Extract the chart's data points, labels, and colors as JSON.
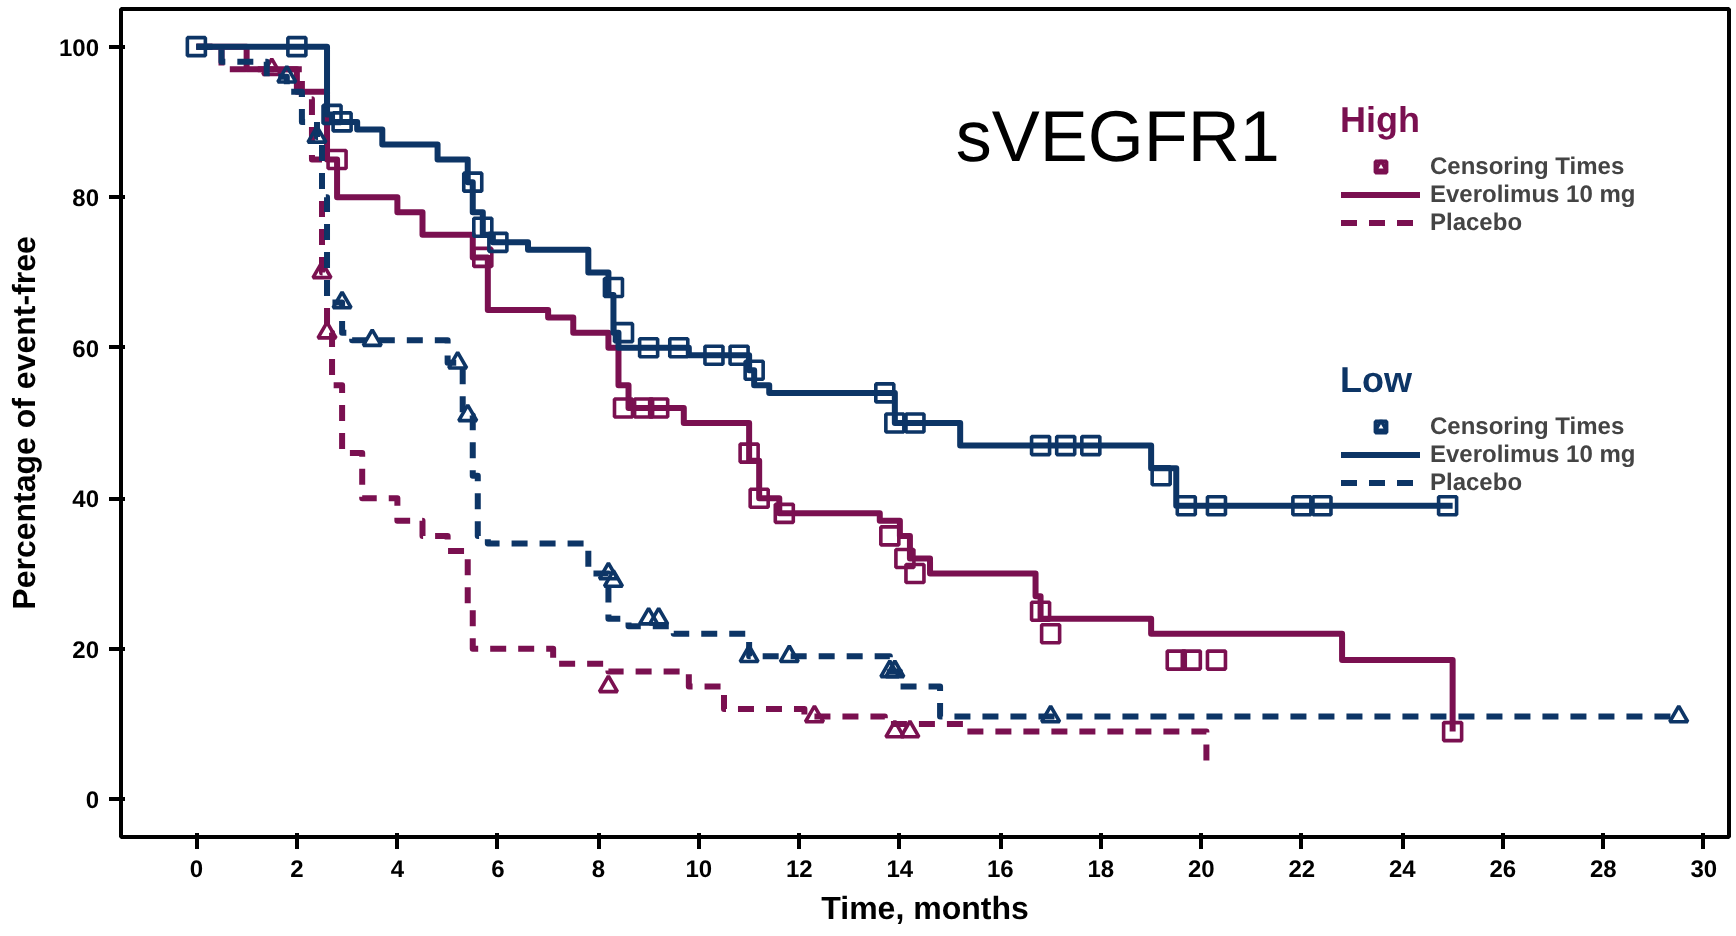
{
  "chart_data": {
    "type": "step",
    "title": "sVEGFR1",
    "xlabel": "Time, months",
    "ylabel": "Percentage of event-free",
    "annotations": [
      "High",
      "Low"
    ],
    "xlim": [
      -1.5,
      30.5
    ],
    "ylim": [
      -5,
      105
    ],
    "xticks": [
      0,
      2,
      4,
      6,
      8,
      10,
      12,
      14,
      16,
      18,
      20,
      22,
      24,
      26,
      28,
      30
    ],
    "yticks": [
      0,
      20,
      40,
      60,
      80,
      100
    ],
    "grid": false,
    "legend": "top right",
    "series": [
      {
        "name": "Everolimus 10 mg",
        "color": "#7a1050",
        "line_style": "solid",
        "x": [
          0,
          1,
          2,
          2.6,
          2.8,
          4,
          4.5,
          5.5,
          5.8,
          7,
          7.5,
          8.2,
          8.4,
          8.6,
          9.7,
          10.8,
          11,
          11.2,
          11.6,
          13.6,
          14,
          14.2,
          14.6,
          16.7,
          16.8,
          19,
          22.8,
          25
        ],
        "values": [
          100,
          97,
          94,
          85,
          80,
          78,
          75,
          72,
          65,
          64,
          62,
          60,
          55,
          52,
          50,
          50,
          45,
          40,
          38,
          37,
          35,
          32,
          30,
          27,
          24,
          22,
          18.5,
          9
        ]
      },
      {
        "name": "Placebo",
        "color": "#7a1050",
        "line_style": "dashed",
        "x": [
          0,
          0.5,
          1.5,
          2.1,
          2.3,
          2.5,
          2.6,
          2.7,
          2.9,
          3.3,
          4,
          4.5,
          5,
          5.4,
          5.5,
          7.1,
          8.2,
          9.8,
          10.5,
          12.1,
          13.7,
          15.3,
          20.1
        ],
        "values": [
          100,
          97,
          97,
          93,
          85,
          70,
          62,
          55,
          46,
          40,
          37,
          35,
          33,
          26,
          20,
          18,
          17,
          15,
          12,
          11,
          10,
          9,
          5
        ]
      },
      {
        "name": "Censoring Times",
        "type": "scatter",
        "marker": "square",
        "color": "#7a1050",
        "x": [
          2.8,
          5.7,
          8.5,
          8.9,
          9.2,
          11,
          11.2,
          11.7,
          13.8,
          14.1,
          14.3,
          16.8,
          17,
          19.5,
          19.8,
          20.3,
          25
        ],
        "values": [
          85,
          72,
          52,
          52,
          52,
          46,
          40,
          38,
          35,
          32,
          30,
          25,
          22,
          18.5,
          18.5,
          18.5,
          9
        ]
      },
      {
        "type": "scatter",
        "marker": "triangle",
        "color": "#7a1050",
        "x": [
          1.5,
          2.5,
          2.6,
          8.2,
          12.3,
          13.9,
          14.2
        ],
        "values": [
          97,
          70,
          62,
          15,
          11,
          9,
          9
        ]
      },
      {
        "name": "Everolimus 10 mg",
        "color": "#0d3566",
        "line_style": "solid",
        "x": [
          0,
          2.6,
          2.7,
          3.2,
          3.7,
          4.8,
          5.4,
          5.5,
          5.7,
          5.9,
          6.6,
          7.8,
          8.2,
          8.3,
          8.4,
          9.8,
          11,
          11.1,
          11.4,
          13.8,
          13.9,
          15.2,
          19,
          19.5,
          25
        ],
        "values": [
          100,
          91,
          90,
          89,
          87,
          85,
          82,
          78,
          75,
          74,
          73,
          70,
          67,
          62,
          60,
          59,
          57,
          55,
          54,
          54,
          50,
          47,
          44,
          39,
          39
        ]
      },
      {
        "name": "Placebo",
        "color": "#0d3566",
        "line_style": "dashed",
        "x": [
          0,
          0.5,
          1.4,
          1.8,
          2.1,
          2.4,
          2.5,
          2.6,
          2.9,
          3.1,
          5,
          5.3,
          5.5,
          5.6,
          5.8,
          7.8,
          8.2,
          8.6,
          9.5,
          11,
          13.8,
          14,
          14.8,
          29.5
        ],
        "values": [
          100,
          98,
          96,
          94,
          90,
          88,
          80,
          66,
          62,
          61,
          58,
          51,
          43,
          35,
          34,
          30,
          24,
          23,
          22,
          19,
          17,
          15,
          11,
          11
        ]
      },
      {
        "name": "Censoring Times",
        "type": "scatter",
        "marker": "square",
        "color": "#0d3566",
        "x": [
          0,
          2,
          2.7,
          2.9,
          5.5,
          5.7,
          6,
          8.3,
          8.5,
          9,
          9.6,
          10.3,
          10.8,
          11.1,
          13.7,
          13.9,
          14.3,
          16.8,
          17.3,
          17.8,
          19.2,
          19.7,
          20.3,
          22,
          22.4,
          24.9
        ],
        "values": [
          100,
          100,
          91,
          90,
          82,
          76,
          74,
          68,
          62,
          60,
          60,
          59,
          59,
          57,
          54,
          50,
          50,
          47,
          47,
          47,
          43,
          39,
          39,
          39,
          39,
          39
        ]
      },
      {
        "type": "scatter",
        "marker": "triangle",
        "color": "#0d3566",
        "x": [
          1.8,
          2.4,
          2.9,
          3.5,
          5.2,
          5.4,
          8.2,
          8.3,
          9,
          9.2,
          11,
          11.8,
          13.8,
          13.9,
          17,
          29.5
        ],
        "values": [
          96,
          88,
          66,
          61,
          58,
          51,
          30,
          29,
          24,
          24,
          19,
          19,
          17,
          17,
          11,
          11
        ]
      }
    ]
  }
}
